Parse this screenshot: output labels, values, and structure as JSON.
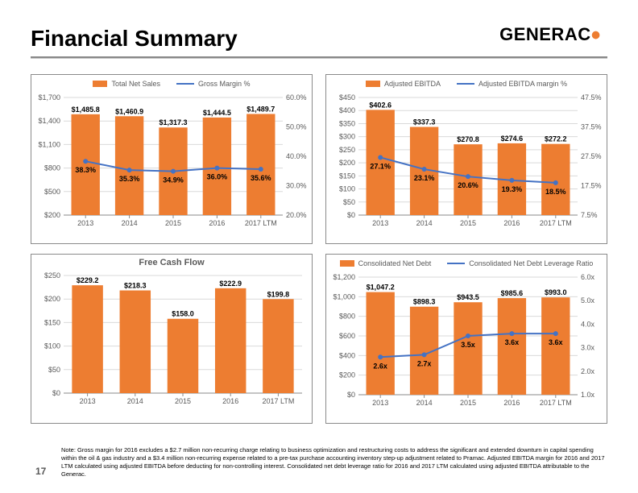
{
  "page_title": "Financial Summary",
  "brand": {
    "name": "GENERAC",
    "dotColor": "#ed7d31"
  },
  "page_number": "17",
  "categories": [
    "2013",
    "2014",
    "2015",
    "2016",
    "2017 LTM"
  ],
  "colors": {
    "bar": "#ed7d31",
    "line": "#4472c4",
    "grid": "#d9d9d9",
    "axis": "#8a8a8a"
  },
  "chart1": {
    "barSeriesName": "Total Net Sales",
    "lineSeriesName": "Gross Margin %",
    "barLabels": [
      "$1,485.8",
      "$1,460.9",
      "$1,317.3",
      "$1,444.5",
      "$1,489.7"
    ],
    "barValues": [
      1485.8,
      1460.9,
      1317.3,
      1444.5,
      1489.7
    ],
    "lineLabels": [
      "38.3%",
      "35.3%",
      "34.9%",
      "36.0%",
      "35.6%"
    ],
    "lineValues": [
      38.3,
      35.3,
      34.9,
      36.0,
      35.6
    ],
    "yLeft": {
      "min": 200,
      "max": 1700,
      "step": 300,
      "prefix": "$",
      "suffix": ""
    },
    "yRight": {
      "min": 20,
      "max": 60,
      "step": 10,
      "prefix": "",
      "suffix": ".0%"
    }
  },
  "chart2": {
    "barSeriesName": "Adjusted EBITDA",
    "lineSeriesName": "Adjusted EBITDA margin %",
    "barLabels": [
      "$402.6",
      "$337.3",
      "$270.8",
      "$274.6",
      "$272.2"
    ],
    "barValues": [
      402.6,
      337.3,
      270.8,
      274.6,
      272.2
    ],
    "lineLabels": [
      "27.1%",
      "23.1%",
      "20.6%",
      "19.3%",
      "18.5%"
    ],
    "lineValues": [
      27.1,
      23.1,
      20.6,
      19.3,
      18.5
    ],
    "yLeft": {
      "min": 0,
      "max": 450,
      "step": 50,
      "prefix": "$",
      "suffix": ""
    },
    "yRight": {
      "min": 7.5,
      "max": 47.5,
      "step": 10,
      "prefix": "",
      "suffix": "%"
    }
  },
  "chart3": {
    "title": "Free Cash Flow",
    "barLabels": [
      "$229.2",
      "$218.3",
      "$158.0",
      "$222.9",
      "$199.8"
    ],
    "barValues": [
      229.2,
      218.3,
      158.0,
      222.9,
      199.8
    ],
    "yLeft": {
      "min": 0,
      "max": 250,
      "step": 50,
      "prefix": "$",
      "suffix": ""
    }
  },
  "chart4": {
    "barSeriesName": "Consolidated Net Debt",
    "lineSeriesName": "Consolidated Net Debt Leverage Ratio",
    "barLabels": [
      "$1,047.2",
      "$898.3",
      "$943.5",
      "$985.6",
      "$993.0"
    ],
    "barValues": [
      1047.2,
      898.3,
      943.5,
      985.6,
      993.0
    ],
    "lineLabels": [
      "2.6x",
      "2.7x",
      "3.5x",
      "3.6x",
      "3.6x"
    ],
    "lineValues": [
      2.6,
      2.7,
      3.5,
      3.6,
      3.6
    ],
    "yLeft": {
      "min": 0,
      "max": 1200,
      "step": 200,
      "prefix": "$",
      "suffix": ""
    },
    "yRight": {
      "min": 1.0,
      "max": 6.0,
      "step": 1.0,
      "prefix": "",
      "suffix": "x"
    }
  },
  "note": "Note: Gross margin for 2016 excludes a $2.7 million non-recurring charge relating to business optimization and restructuring costs to address the significant and extended downturn in capital spending within the oil & gas industry and a $3.4 million non-recurring expense related to a pre-tax purchase accounting inventory step-up adjustment related to Pramac. Adjusted EBITDA margin for 2016 and 2017 LTM calculated using adjusted EBITDA before deducting for non-controlling interest.  Consolidated net debt leverage ratio for 2016 and 2017 LTM calculated using adjusted EBITDA attributable to the Generac."
}
